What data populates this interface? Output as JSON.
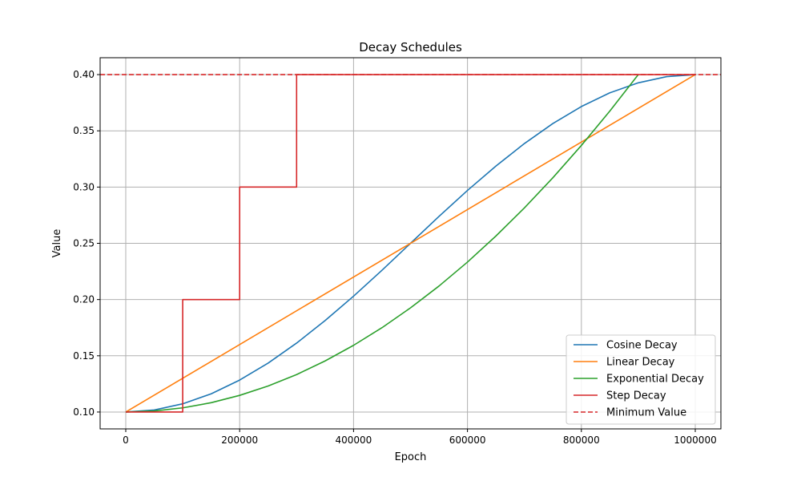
{
  "chart_data": {
    "type": "line",
    "title": "Decay Schedules",
    "xlabel": "Epoch",
    "ylabel": "Value",
    "xlim": [
      -45000,
      1045000
    ],
    "ylim": [
      0.085,
      0.415
    ],
    "xticks": [
      0,
      200000,
      400000,
      600000,
      800000,
      1000000
    ],
    "xtick_labels": [
      "0",
      "200000",
      "400000",
      "600000",
      "800000",
      "1000000"
    ],
    "yticks": [
      0.1,
      0.15,
      0.2,
      0.25,
      0.3,
      0.35,
      0.4
    ],
    "ytick_labels": [
      "0.10",
      "0.15",
      "0.20",
      "0.25",
      "0.30",
      "0.35",
      "0.40"
    ],
    "grid": true,
    "legend_position": "lower-right",
    "series": [
      {
        "name": "Cosine Decay",
        "color": "#1f77b4",
        "style": "solid",
        "x": [
          0,
          50000,
          100000,
          150000,
          200000,
          250000,
          300000,
          350000,
          400000,
          450000,
          500000,
          550000,
          600000,
          650000,
          700000,
          750000,
          800000,
          850000,
          900000,
          950000,
          1000000
        ],
        "y": [
          0.1,
          0.1018,
          0.1073,
          0.1162,
          0.1284,
          0.1435,
          0.1613,
          0.1813,
          0.203,
          0.2261,
          0.25,
          0.2739,
          0.297,
          0.3187,
          0.3387,
          0.3565,
          0.3716,
          0.3838,
          0.3927,
          0.3982,
          0.4
        ]
      },
      {
        "name": "Linear Decay",
        "color": "#ff7f0e",
        "style": "solid",
        "x": [
          0,
          1000000
        ],
        "y": [
          0.1,
          0.4
        ]
      },
      {
        "name": "Exponential Decay",
        "color": "#2ca02c",
        "style": "solid",
        "x": [
          0,
          50000,
          100000,
          150000,
          200000,
          250000,
          300000,
          350000,
          400000,
          450000,
          500000,
          550000,
          600000,
          650000,
          700000,
          750000,
          800000,
          850000,
          900000
        ],
        "y": [
          0.1,
          0.1009,
          0.1037,
          0.1083,
          0.1148,
          0.1231,
          0.1333,
          0.1454,
          0.1593,
          0.175,
          0.1926,
          0.212,
          0.2333,
          0.2565,
          0.2815,
          0.3083,
          0.337,
          0.3676,
          0.4
        ]
      },
      {
        "name": "Step Decay",
        "color": "#d62728",
        "style": "step",
        "x": [
          0,
          100000,
          100000,
          200000,
          200000,
          300000,
          300000,
          1000000
        ],
        "y": [
          0.1,
          0.1,
          0.2,
          0.2,
          0.3,
          0.3,
          0.4,
          0.4
        ]
      },
      {
        "name": "Minimum Value",
        "color": "#d62728",
        "style": "dashed-horizontal",
        "y_value": 0.4
      }
    ]
  }
}
